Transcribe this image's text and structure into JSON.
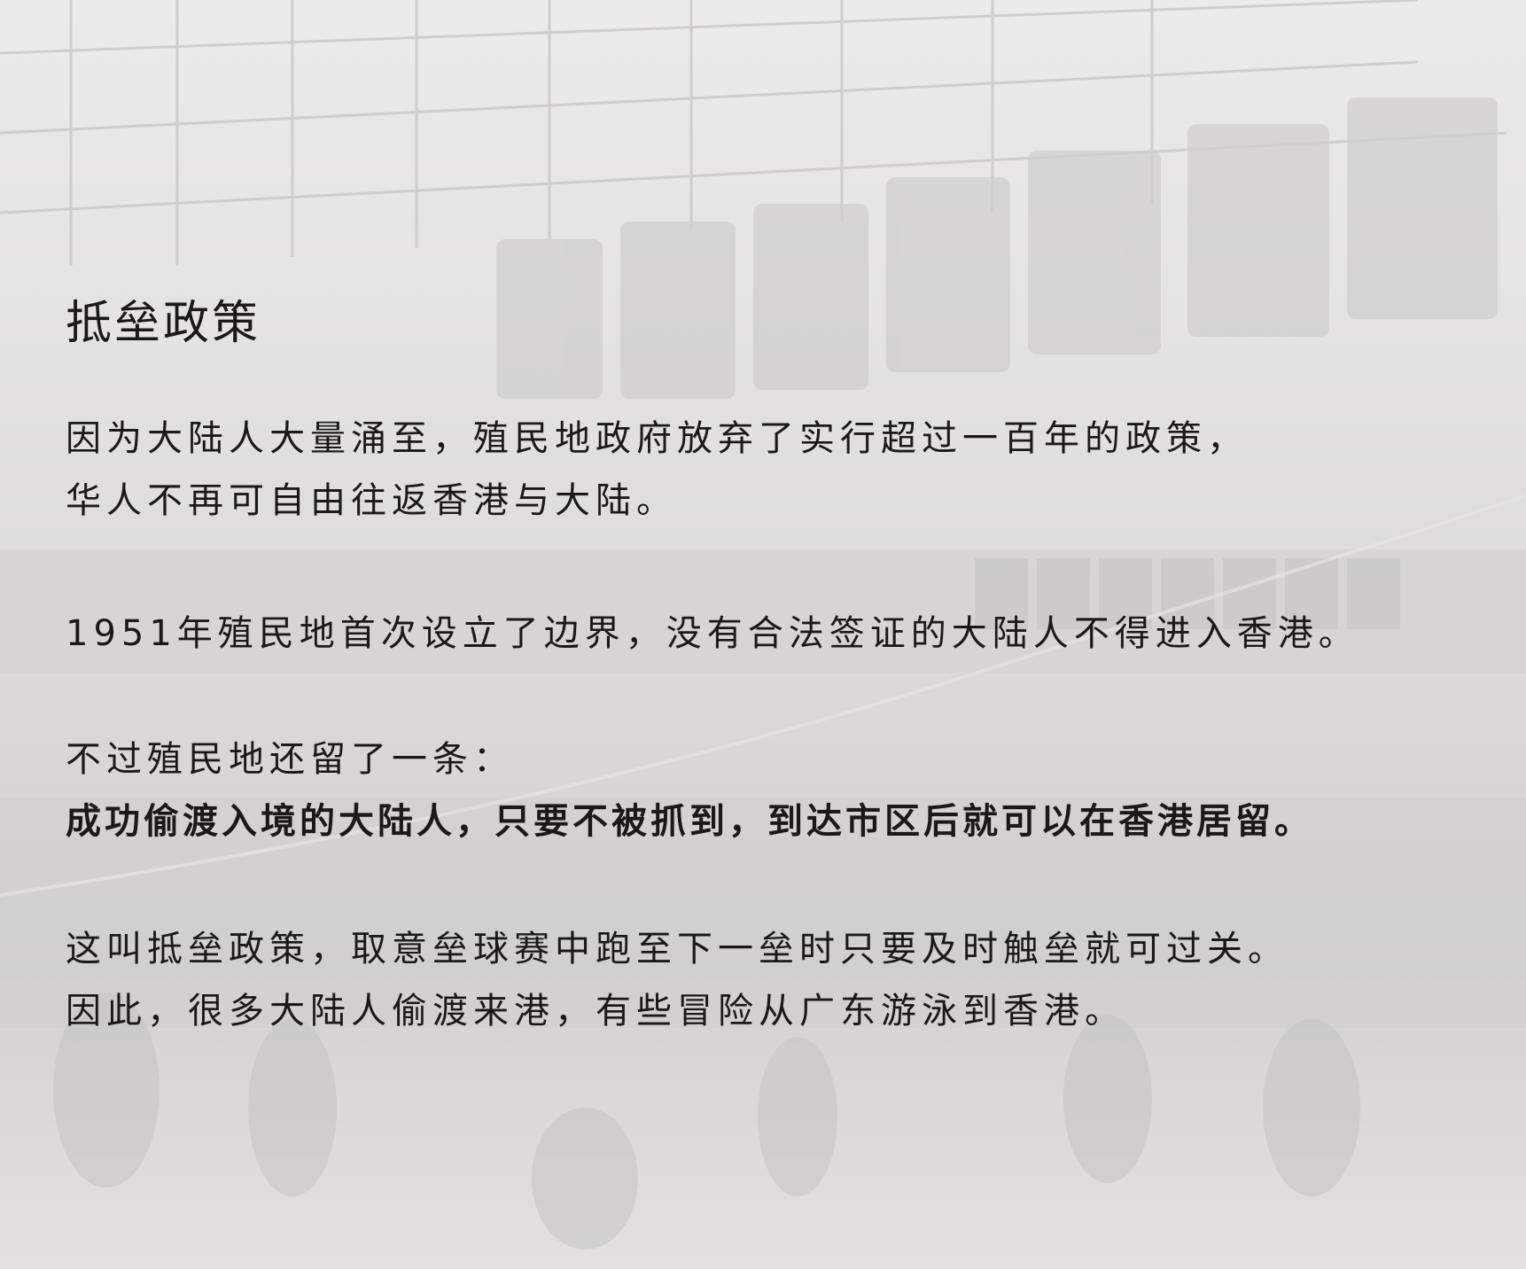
{
  "title": "抵垒政策",
  "paragraphs": {
    "p1": {
      "line1": "因为大陆人大量涌至，殖民地政府放弃了实行超过一百年的政策，",
      "line2": "华人不再可自由往返香港与大陆。"
    },
    "p2": {
      "line1": "1951年殖民地首次设立了边界，没有合法签证的大陆人不得进入香港。"
    },
    "p3": {
      "line1": "不过殖民地还留了一条：",
      "line2": "成功偷渡入境的大陆人，只要不被抓到，到达市区后就可以在香港居留。"
    },
    "p4": {
      "line1": "这叫抵垒政策，取意垒球赛中跑至下一垒时只要及时触垒就可过关。",
      "line2": "因此，很多大陆人偷渡来港，有些冒险从广东游泳到香港。"
    }
  },
  "colors": {
    "text": "#1a1818",
    "background": "#e6e4e4"
  }
}
